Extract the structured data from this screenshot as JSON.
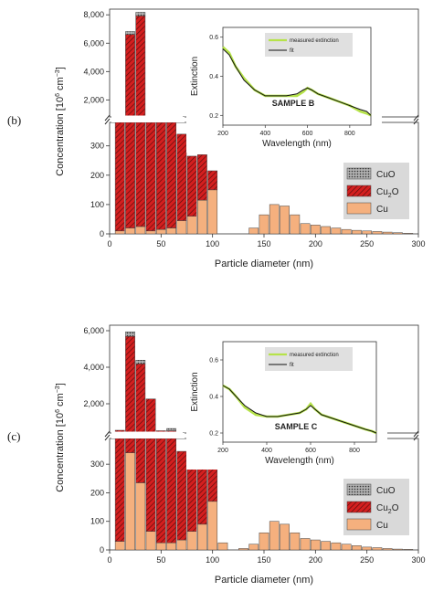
{
  "colors": {
    "cu": "#f5b07e",
    "cu2o": "#d41f1f",
    "cu2o_hatch": "#5a0e0e",
    "cuo": "#9a9a9a",
    "measured": "#b6e34a",
    "fit": "#111111",
    "legend_bg": "#d9d9d9"
  },
  "chart_data": [
    {
      "type": "bar",
      "stacked": true,
      "panel_label": "(b)",
      "xlabel": "Particle diameter (nm)",
      "ylabel_main": "Concentration [10",
      "ylabel_exp": "6",
      "ylabel_unit": " cm",
      "ylabel_unit_exp": "−3",
      "ylabel_close": "]",
      "xlim": [
        0,
        300
      ],
      "x_ticks": [
        "0",
        "50",
        "100",
        "150",
        "200",
        "250",
        "300"
      ],
      "y_break": true,
      "ylim_lower": [
        0,
        380
      ],
      "ylim_upper": [
        800,
        8400
      ],
      "y_ticks_lower": [
        "0",
        "100",
        "200",
        "300"
      ],
      "y_ticks_upper": [
        "2,000",
        "4,000",
        "6,000",
        "8,000"
      ],
      "legend_labels": [
        "CuO",
        "Cu2O",
        "Cu"
      ],
      "legend_label_cu2o_base": "Cu",
      "legend_label_cu2o_sub": "2",
      "legend_label_cu2o_tail": "O",
      "x": [
        10,
        20,
        30,
        40,
        50,
        60,
        70,
        80,
        90,
        100,
        140,
        150,
        160,
        170,
        180,
        190,
        200,
        210,
        220,
        230,
        240,
        250,
        260,
        270,
        280,
        290
      ],
      "series": [
        {
          "name": "Cu",
          "values": [
            10,
            20,
            25,
            10,
            15,
            20,
            45,
            60,
            115,
            150,
            20,
            65,
            100,
            95,
            65,
            35,
            30,
            25,
            20,
            15,
            12,
            10,
            8,
            6,
            4,
            2
          ]
        },
        {
          "name": "Cu2O",
          "values": [
            780,
            6600,
            7900,
            790,
            790,
            390,
            295,
            205,
            155,
            65,
            0,
            0,
            0,
            0,
            0,
            0,
            0,
            0,
            0,
            0,
            0,
            0,
            0,
            0,
            0,
            0
          ]
        },
        {
          "name": "CuO",
          "values": [
            0,
            200,
            250,
            0,
            0,
            0,
            0,
            0,
            0,
            0,
            0,
            0,
            0,
            0,
            0,
            0,
            0,
            0,
            0,
            0,
            0,
            0,
            0,
            0,
            0,
            0
          ]
        }
      ],
      "inset": {
        "annotation": "SAMPLE B",
        "xlabel": "Wavelength (nm)",
        "ylabel": "Extinction",
        "xlim": [
          200,
          900
        ],
        "ylim": [
          0.15,
          0.65
        ],
        "x_ticks": [
          "200",
          "400",
          "600",
          "800"
        ],
        "y_ticks": [
          "0.2",
          "0.4",
          "0.6"
        ],
        "legend": [
          "measured extinction",
          "fit"
        ],
        "measured": {
          "x": [
            200,
            230,
            260,
            300,
            350,
            400,
            450,
            500,
            550,
            580,
            600,
            620,
            650,
            700,
            750,
            800,
            850,
            880,
            900
          ],
          "y": [
            0.55,
            0.52,
            0.45,
            0.39,
            0.33,
            0.3,
            0.3,
            0.3,
            0.3,
            0.32,
            0.34,
            0.33,
            0.31,
            0.29,
            0.27,
            0.25,
            0.22,
            0.21,
            0.2
          ]
        },
        "fit": {
          "x": [
            200,
            230,
            260,
            300,
            350,
            400,
            450,
            500,
            550,
            580,
            600,
            620,
            650,
            700,
            750,
            800,
            850,
            880,
            900
          ],
          "y": [
            0.54,
            0.51,
            0.45,
            0.38,
            0.33,
            0.3,
            0.3,
            0.3,
            0.31,
            0.33,
            0.34,
            0.33,
            0.31,
            0.29,
            0.27,
            0.25,
            0.23,
            0.22,
            0.2
          ]
        }
      }
    },
    {
      "type": "bar",
      "stacked": true,
      "panel_label": "(c)",
      "xlabel": "Particle diameter (nm)",
      "ylabel_main": "Concentration [10",
      "ylabel_exp": "6",
      "ylabel_unit": " cm",
      "ylabel_unit_exp": "−3",
      "ylabel_close": "]",
      "xlim": [
        0,
        300
      ],
      "x_ticks": [
        "0",
        "50",
        "100",
        "150",
        "200",
        "250",
        "300"
      ],
      "y_break": true,
      "ylim_lower": [
        0,
        390
      ],
      "ylim_upper": [
        400,
        6300
      ],
      "y_ticks_lower": [
        "0",
        "100",
        "200",
        "300"
      ],
      "y_ticks_upper": [
        "2,000",
        "4,000",
        "6,000"
      ],
      "legend_labels": [
        "CuO",
        "Cu2O",
        "Cu"
      ],
      "legend_label_cu2o_base": "Cu",
      "legend_label_cu2o_sub": "2",
      "legend_label_cu2o_tail": "O",
      "x": [
        10,
        20,
        30,
        40,
        50,
        60,
        70,
        80,
        90,
        100,
        110,
        130,
        140,
        150,
        160,
        170,
        180,
        190,
        200,
        210,
        220,
        230,
        240,
        250,
        260,
        270,
        280,
        290
      ],
      "series": [
        {
          "name": "Cu",
          "values": [
            30,
            340,
            235,
            65,
            25,
            25,
            35,
            65,
            90,
            170,
            25,
            5,
            20,
            60,
            100,
            90,
            60,
            40,
            35,
            30,
            25,
            20,
            15,
            10,
            8,
            5,
            3,
            2
          ]
        },
        {
          "name": "Cu2O",
          "values": [
            520,
            5350,
            3950,
            2200,
            500,
            500,
            310,
            225,
            195,
            115,
            0,
            0,
            0,
            0,
            0,
            0,
            0,
            0,
            0,
            0,
            0,
            0,
            0,
            0,
            0,
            0,
            0,
            0
          ]
        },
        {
          "name": "CuO",
          "values": [
            0,
            250,
            200,
            0,
            0,
            120,
            0,
            0,
            0,
            0,
            0,
            0,
            0,
            0,
            0,
            0,
            0,
            0,
            0,
            0,
            0,
            0,
            0,
            0,
            0,
            0,
            0,
            0
          ]
        }
      ],
      "inset": {
        "annotation": "SAMPLE C",
        "xlabel": "Wavelength (nm)",
        "ylabel": "Extinction",
        "xlim": [
          200,
          900
        ],
        "ylim": [
          0.15,
          0.7
        ],
        "x_ticks": [
          "200",
          "400",
          "600",
          "800"
        ],
        "y_ticks": [
          "0.2",
          "0.4",
          "0.6"
        ],
        "legend": [
          "measured extinction",
          "fit"
        ],
        "measured": {
          "x": [
            200,
            230,
            260,
            300,
            350,
            400,
            450,
            500,
            550,
            580,
            600,
            620,
            650,
            700,
            750,
            800,
            850,
            880,
            900
          ],
          "y": [
            0.46,
            0.44,
            0.4,
            0.34,
            0.3,
            0.29,
            0.29,
            0.3,
            0.31,
            0.33,
            0.36,
            0.33,
            0.3,
            0.28,
            0.26,
            0.24,
            0.22,
            0.21,
            0.2
          ]
        },
        "fit": {
          "x": [
            200,
            230,
            260,
            300,
            350,
            400,
            450,
            500,
            550,
            580,
            600,
            620,
            650,
            700,
            750,
            800,
            850,
            880,
            900
          ],
          "y": [
            0.46,
            0.44,
            0.4,
            0.35,
            0.31,
            0.29,
            0.29,
            0.3,
            0.31,
            0.33,
            0.35,
            0.33,
            0.3,
            0.28,
            0.26,
            0.24,
            0.22,
            0.21,
            0.2
          ]
        }
      }
    }
  ]
}
